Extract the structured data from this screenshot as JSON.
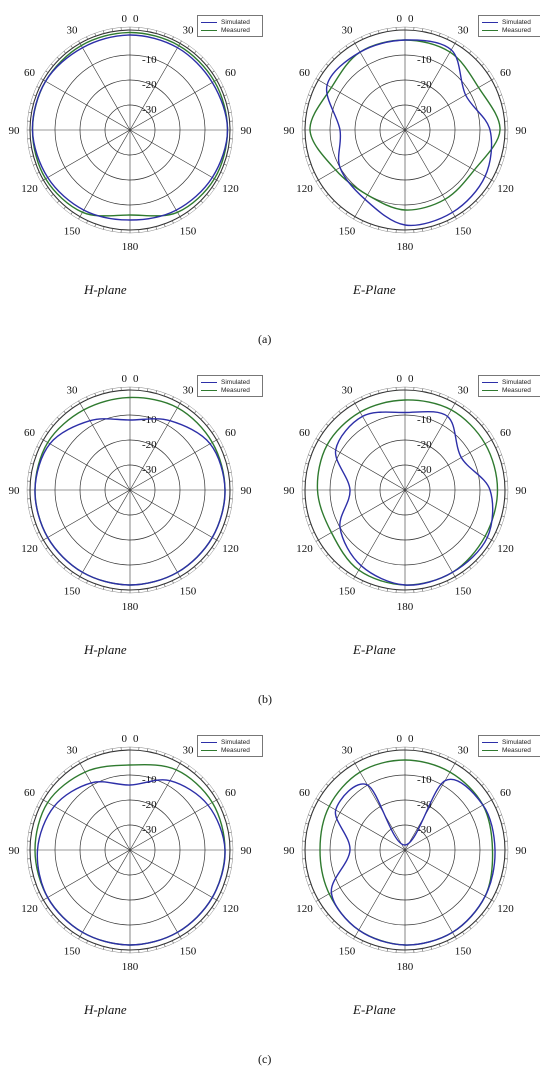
{
  "colors": {
    "simulated": "#2d2fa8",
    "measured": "#2f7a2f",
    "grid": "#333333"
  },
  "labels": {
    "sim": "Simulated",
    "meas": "Measured"
  },
  "subfigures": [
    {
      "label": "(a)",
      "left_title": "H-plane",
      "right_title": "E-Plane"
    },
    {
      "label": "(b)",
      "left_title": "H-plane",
      "right_title": "E-Plane"
    },
    {
      "label": "(c)",
      "left_title": "H-plane",
      "right_title": "E-Plane"
    }
  ],
  "chart_data": [
    {
      "type": "line",
      "subplot": "(a)",
      "polar": true,
      "title": "H-plane",
      "angle_ticks": [
        "0",
        "30",
        "60",
        "90",
        "120",
        "150",
        "180",
        "150",
        "120",
        "90",
        "60",
        "30",
        "0"
      ],
      "radial_ticks": [
        "-10",
        "-20",
        "-30"
      ],
      "r_range_db": [
        -40,
        0
      ],
      "legend_position": "top-right",
      "theta_deg": [
        0,
        30,
        60,
        90,
        120,
        150,
        180,
        210,
        240,
        270,
        300,
        330
      ],
      "series": [
        {
          "name": "Simulated",
          "values_db": [
            -2,
            -2,
            -2,
            -1,
            -2,
            -3,
            -4,
            -3,
            -2,
            -1,
            -1,
            -2
          ]
        },
        {
          "name": "Measured",
          "values_db": [
            -1,
            -1,
            -1,
            -1,
            -1,
            -2,
            -6,
            -2,
            -1,
            -1,
            -1,
            -1
          ]
        }
      ]
    },
    {
      "type": "line",
      "subplot": "(a)",
      "polar": true,
      "title": "E-Plane",
      "angle_ticks": [
        "0",
        "30",
        "60",
        "90",
        "120",
        "150",
        "180",
        "150",
        "120",
        "90",
        "60",
        "30",
        "0"
      ],
      "radial_ticks": [
        "-10",
        "-20",
        "-30"
      ],
      "r_range_db": [
        -40,
        0
      ],
      "legend_position": "top-right",
      "theta_deg": [
        0,
        30,
        60,
        90,
        120,
        150,
        180,
        210,
        240,
        270,
        300,
        330
      ],
      "series": [
        {
          "name": "Simulated",
          "values_db": [
            -4,
            -3,
            -12,
            -6,
            -3,
            -2,
            -2,
            -8,
            -10,
            -14,
            -4,
            -4
          ]
        },
        {
          "name": "Measured",
          "values_db": [
            -4,
            -4,
            -6,
            -2,
            -8,
            -8,
            -8,
            -10,
            -8,
            -2,
            -6,
            -4
          ]
        }
      ]
    },
    {
      "type": "line",
      "subplot": "(b)",
      "polar": true,
      "title": "H-plane",
      "angle_ticks": [
        "0",
        "30",
        "60",
        "90",
        "120",
        "150",
        "180",
        "150",
        "120",
        "90",
        "60",
        "30",
        "0"
      ],
      "radial_ticks": [
        "-10",
        "-20",
        "-30"
      ],
      "r_range_db": [
        -40,
        0
      ],
      "legend_position": "top-right",
      "theta_deg": [
        0,
        30,
        60,
        90,
        120,
        150,
        180,
        210,
        240,
        270,
        300,
        330
      ],
      "series": [
        {
          "name": "Simulated",
          "values_db": [
            -12,
            -8,
            -3,
            -2,
            -2,
            -2,
            -2,
            -2,
            -2,
            -2,
            -3,
            -8
          ]
        },
        {
          "name": "Measured",
          "values_db": [
            -3,
            -2,
            -2,
            -2,
            -2,
            -2,
            -2,
            -2,
            -2,
            -2,
            -2,
            -3
          ]
        }
      ]
    },
    {
      "type": "line",
      "subplot": "(b)",
      "polar": true,
      "title": "E-Plane",
      "angle_ticks": [
        "0",
        "30",
        "60",
        "90",
        "120",
        "150",
        "180",
        "150",
        "120",
        "90",
        "60",
        "30",
        "0"
      ],
      "radial_ticks": [
        "-10",
        "-20",
        "-30"
      ],
      "r_range_db": [
        -40,
        0
      ],
      "legend_position": "top-right",
      "theta_deg": [
        0,
        30,
        60,
        90,
        120,
        150,
        180,
        210,
        240,
        270,
        300,
        330
      ],
      "series": [
        {
          "name": "Simulated",
          "values_db": [
            -9,
            -6,
            -14,
            -6,
            -2,
            -2,
            -2,
            -5,
            -10,
            -18,
            -8,
            -6
          ]
        },
        {
          "name": "Measured",
          "values_db": [
            -4,
            -3,
            -3,
            -3,
            -3,
            -2,
            -2,
            -3,
            -6,
            -5,
            -4,
            -4
          ]
        }
      ]
    },
    {
      "type": "line",
      "subplot": "(c)",
      "polar": true,
      "title": "H-plane",
      "angle_ticks": [
        "0",
        "30",
        "60",
        "90",
        "120",
        "150",
        "180",
        "150",
        "120",
        "90",
        "60",
        "30",
        "0"
      ],
      "radial_ticks": [
        "-10",
        "-20",
        "-30"
      ],
      "r_range_db": [
        -40,
        0
      ],
      "legend_position": "top-right",
      "theta_deg": [
        0,
        30,
        60,
        90,
        120,
        150,
        180,
        210,
        240,
        270,
        300,
        330
      ],
      "series": [
        {
          "name": "Simulated",
          "values_db": [
            -14,
            -8,
            -4,
            -2,
            -2,
            -2,
            -2,
            -2,
            -2,
            -3,
            -5,
            -9
          ]
        },
        {
          "name": "Measured",
          "values_db": [
            -6,
            -3,
            -2,
            -2,
            -2,
            -2,
            -2,
            -2,
            -2,
            -2,
            -2,
            -4
          ]
        }
      ]
    },
    {
      "type": "line",
      "subplot": "(c)",
      "polar": true,
      "title": "E-Plane",
      "angle_ticks": [
        "0",
        "30",
        "60",
        "90",
        "120",
        "150",
        "180",
        "150",
        "120",
        "90",
        "60",
        "30",
        "0"
      ],
      "radial_ticks": [
        "-10",
        "-20",
        "-30"
      ],
      "r_range_db": [
        -40,
        0
      ],
      "legend_position": "top-right",
      "theta_deg": [
        0,
        30,
        60,
        90,
        120,
        150,
        180,
        210,
        240,
        270,
        300,
        330
      ],
      "series": [
        {
          "name": "Simulated",
          "values_db": [
            -38,
            -8,
            -4,
            -4,
            -3,
            -2,
            -2,
            -3,
            -6,
            -18,
            -8,
            -10
          ]
        },
        {
          "name": "Measured",
          "values_db": [
            -4,
            -4,
            -4,
            -5,
            -3,
            -2,
            -2,
            -3,
            -5,
            -6,
            -5,
            -4
          ]
        }
      ]
    }
  ]
}
